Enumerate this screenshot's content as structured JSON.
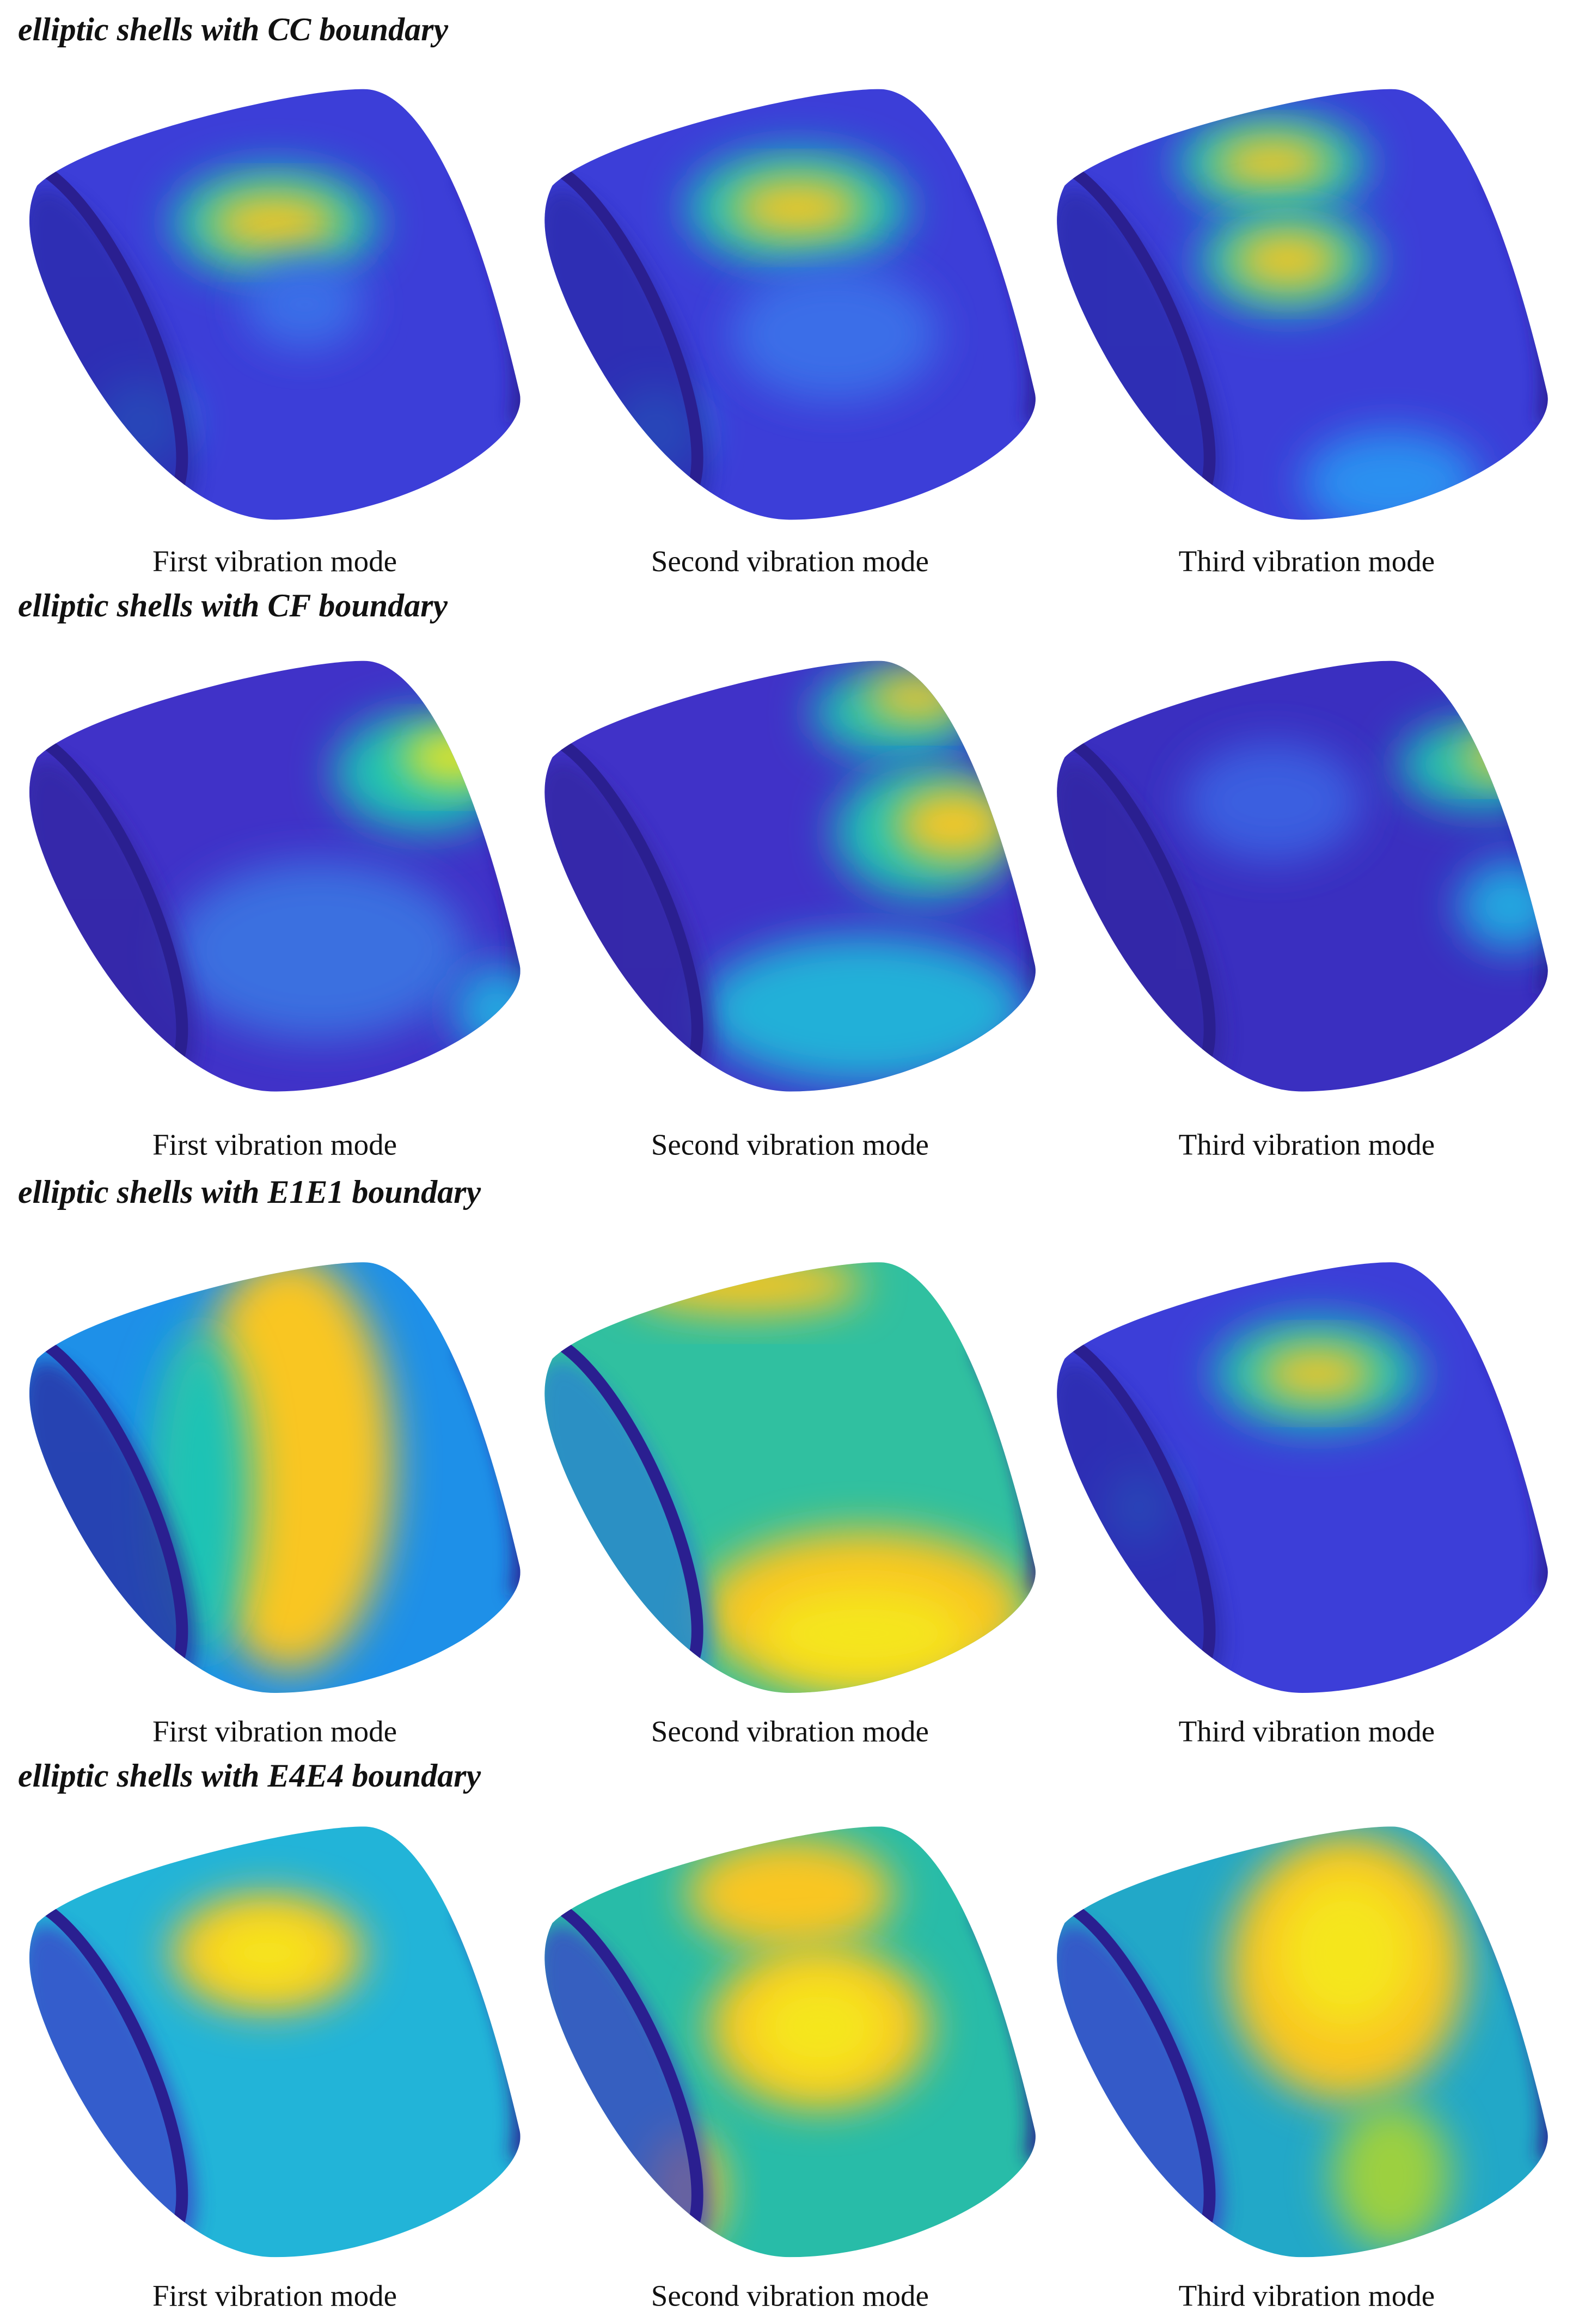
{
  "sections": [
    {
      "title": "elliptic shells with CC boundary",
      "captions": [
        "First vibration mode",
        "Second vibration mode",
        "Third vibration mode"
      ]
    },
    {
      "title": "elliptic shells with CF boundary",
      "captions": [
        "First vibration mode",
        "Second vibration mode",
        "Third vibration mode"
      ]
    },
    {
      "title": "elliptic shells with E1E1 boundary",
      "captions": [
        "First vibration mode",
        "Second vibration mode",
        "Third vibration mode"
      ]
    },
    {
      "title": "elliptic shells with E4E4 boundary",
      "captions": [
        "First vibration mode",
        "Second vibration mode",
        "Third vibration mode"
      ]
    }
  ]
}
